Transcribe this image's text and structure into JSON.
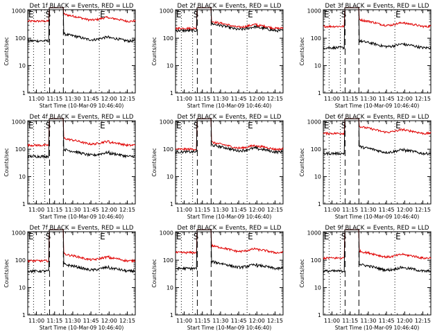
{
  "chart_data": {
    "type": "line",
    "ylabel": "Counts/sec",
    "xlabel": "Start Time (10-Mar-09 10:46:40)",
    "yscale": "log",
    "ylim": [
      1,
      1100
    ],
    "xlim_minutes": [
      10.88,
      12.36
    ],
    "x_tick_labels": [
      "11:00",
      "11:15",
      "11:30",
      "11:45",
      "12:00",
      "12:15"
    ],
    "y_tick_labels": [
      "1",
      "10",
      "100",
      "1000"
    ],
    "markers": {
      "start": "S",
      "end": "E",
      "start_corner": "E"
    },
    "colors": {
      "events": "#000000",
      "lld": "#e00000"
    },
    "series_names": [
      "BLACK = Events",
      "RED = LLD"
    ],
    "panels": [
      {
        "title": "Det 1f BLACK = Events, RED = LLD",
        "events_level": 80,
        "lld_level": 420,
        "events_peak": 1000,
        "lld_peak": 1000
      },
      {
        "title": "Det 2f BLACK = Events, RED = LLD",
        "events_level": 190,
        "lld_level": 230,
        "events_peak": 1000,
        "lld_peak": 1000
      },
      {
        "title": "Det 3f BLACK = Events, RED = LLD",
        "events_level": 45,
        "lld_level": 270,
        "events_peak": 1000,
        "lld_peak": 1000
      },
      {
        "title": "Det 4f BLACK = Events, RED = LLD",
        "events_level": 55,
        "lld_level": 140,
        "events_peak": 1000,
        "lld_peak": 1000
      },
      {
        "title": "Det 5f BLACK = Events, RED = LLD",
        "events_level": 80,
        "lld_level": 100,
        "events_peak": 1000,
        "lld_peak": 1000
      },
      {
        "title": "Det 6f BLACK = Events, RED = LLD",
        "events_level": 70,
        "lld_level": 380,
        "events_peak": 1000,
        "lld_peak": 1000
      },
      {
        "title": "Det 7f BLACK = Events, RED = LLD",
        "events_level": 40,
        "lld_level": 95,
        "events_peak": 1000,
        "lld_peak": 1000
      },
      {
        "title": "Det 8f BLACK = Events, RED = LLD",
        "events_level": 50,
        "lld_level": 190,
        "events_peak": 1000,
        "lld_peak": 1000
      },
      {
        "title": "Det 9f BLACK = Events, RED = LLD",
        "events_level": 40,
        "lld_level": 120,
        "events_peak": 1000,
        "lld_peak": 1000
      }
    ]
  }
}
